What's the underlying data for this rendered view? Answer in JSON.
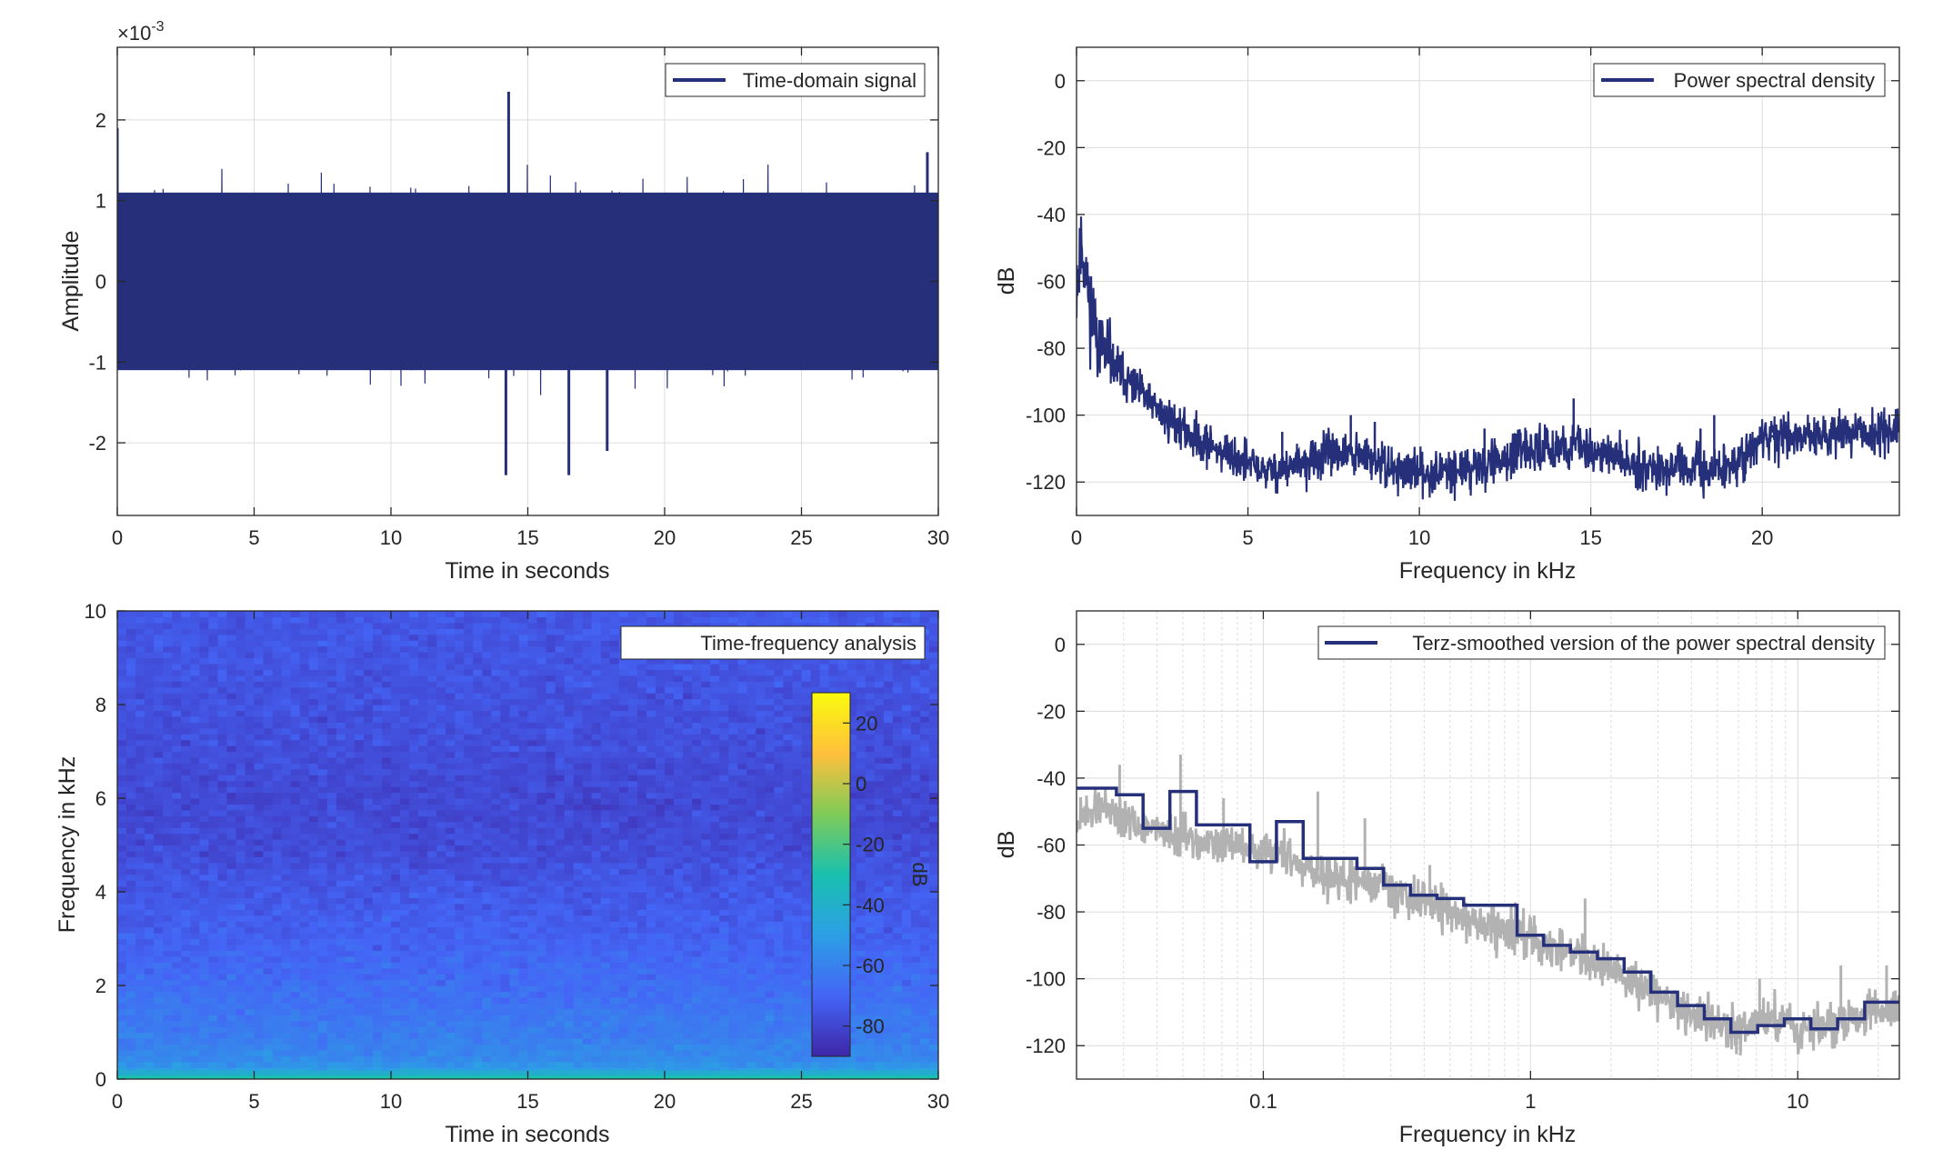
{
  "chart_data": [
    {
      "type": "line",
      "panel": "top-left",
      "legend": "Time-domain signal",
      "legend_position": "top-right",
      "xlabel": "Time in seconds",
      "ylabel": "Amplitude",
      "y_exponent": "×10",
      "y_exponent_power": "-3",
      "xlim": [
        0,
        30
      ],
      "ylim": [
        -2.9,
        2.9
      ],
      "xticks": [
        "0",
        "5",
        "10",
        "15",
        "20",
        "25",
        "30"
      ],
      "yticks": [
        "2",
        "1",
        "0",
        "-1",
        "-2"
      ],
      "grid": true,
      "color": "#26307a",
      "envelope_typical": [
        -1.1,
        1.1
      ],
      "extremes": [
        {
          "x": 0.0,
          "y": 1.9
        },
        {
          "x": 14.3,
          "y": 2.35
        },
        {
          "x": 14.2,
          "y": -2.4
        },
        {
          "x": 16.5,
          "y": -2.4
        },
        {
          "x": 17.9,
          "y": -2.1
        },
        {
          "x": 29.6,
          "y": 1.6
        }
      ]
    },
    {
      "type": "line",
      "panel": "top-right",
      "legend": "Power spectral density",
      "legend_position": "top-right",
      "xlabel": "Frequency in kHz",
      "ylabel": "dB",
      "xlim": [
        0,
        24
      ],
      "ylim": [
        -130,
        10
      ],
      "xticks": [
        "0",
        "5",
        "10",
        "15",
        "20"
      ],
      "yticks": [
        "0",
        "-20",
        "-40",
        "-60",
        "-80",
        "-100",
        "-120"
      ],
      "grid": true,
      "color": "#26307a",
      "x": [
        0,
        0.15,
        0.4,
        0.8,
        1.5,
        2.5,
        3.5,
        4.5,
        5.5,
        6.5,
        7.5,
        8.5,
        9.5,
        10.5,
        11.5,
        12.5,
        13.5,
        14.5,
        15.5,
        16.5,
        17.5,
        18.5,
        19.5,
        20.0,
        21.0,
        22.0,
        23.0,
        24.0
      ],
      "y": [
        -60,
        -48,
        -68,
        -82,
        -90,
        -100,
        -107,
        -112,
        -117,
        -115,
        -111,
        -113,
        -117,
        -117,
        -116,
        -113,
        -110,
        -109,
        -112,
        -115,
        -116,
        -117,
        -113,
        -107,
        -106,
        -106,
        -105,
        -105
      ],
      "spikes": [
        {
          "x": 6.0,
          "y": -105
        },
        {
          "x": 8.0,
          "y": -100
        },
        {
          "x": 8.7,
          "y": -102
        },
        {
          "x": 11.9,
          "y": -104
        },
        {
          "x": 14.5,
          "y": -95
        },
        {
          "x": 18.2,
          "y": -104
        },
        {
          "x": 18.6,
          "y": -100
        },
        {
          "x": 20.3,
          "y": -106
        }
      ]
    },
    {
      "type": "heatmap",
      "panel": "bottom-left",
      "legend": "Time-frequency analysis",
      "legend_position": "top-right",
      "xlabel": "Time in seconds",
      "ylabel": "Frequency in kHz",
      "xlim": [
        0,
        30
      ],
      "ylim": [
        0,
        10
      ],
      "xticks": [
        "0",
        "5",
        "10",
        "15",
        "20",
        "25",
        "30"
      ],
      "yticks": [
        "10",
        "8",
        "6",
        "4",
        "2",
        "0"
      ],
      "colorbar": {
        "label": "dB",
        "range": [
          -90,
          30
        ],
        "ticks": [
          "20",
          "0",
          "-20",
          "-40",
          "-60",
          "-80"
        ],
        "colormap": [
          "#3e26a8",
          "#4465f6",
          "#2c9fe5",
          "#19c0ae",
          "#80cb58",
          "#ffc03b",
          "#f9fb0e"
        ]
      },
      "profile_freq_khz": [
        0,
        0.2,
        0.4,
        1,
        2,
        3,
        4,
        5,
        6,
        7,
        8,
        9,
        10
      ],
      "profile_level_db": [
        -40,
        -50,
        -57,
        -62,
        -67,
        -71,
        -74,
        -78,
        -79,
        -77,
        -76,
        -75,
        -74
      ]
    },
    {
      "type": "line",
      "panel": "bottom-right",
      "legend": "Terz-smoothed version of the power spectral density",
      "legend_position": "top-right",
      "xlabel": "Frequency in kHz",
      "ylabel": "dB",
      "xscale": "log",
      "xlim": [
        0.02,
        24
      ],
      "ylim": [
        -130,
        10
      ],
      "xticks": [
        "0.1",
        "1",
        "10"
      ],
      "yticks": [
        "0",
        "-20",
        "-40",
        "-60",
        "-80",
        "-100",
        "-120"
      ],
      "grid": true,
      "series": [
        {
          "role": "smoothed",
          "color": "#26307a",
          "step_edges": [
            0.02,
            0.0282,
            0.0355,
            0.0447,
            0.0562,
            0.0708,
            0.0891,
            0.112,
            0.141,
            0.178,
            0.224,
            0.282,
            0.355,
            0.447,
            0.562,
            0.708,
            0.891,
            1.12,
            1.41,
            1.78,
            2.24,
            2.82,
            3.55,
            4.47,
            5.62,
            7.08,
            8.91,
            11.2,
            14.1,
            17.8,
            24
          ],
          "step_values": [
            -43,
            -45,
            -55,
            -44,
            -54,
            -54,
            -65,
            -53,
            -64,
            -64,
            -67,
            -72,
            -75,
            -76,
            -78,
            -78,
            -87,
            -90,
            -92,
            -94,
            -98,
            -104,
            -108,
            -112,
            -116,
            -114,
            -112,
            -115,
            -112,
            -107
          ]
        },
        {
          "role": "raw",
          "color": "#b2b2b2",
          "x": [
            0.02,
            0.025,
            0.03,
            0.04,
            0.05,
            0.07,
            0.1,
            0.15,
            0.2,
            0.3,
            0.5,
            0.7,
            1.0,
            1.5,
            2.0,
            3.0,
            4.0,
            5.0,
            6.0,
            7.0,
            8.0,
            10.0,
            12.0,
            15.0,
            18.0,
            22.0,
            24.0
          ],
          "y": [
            -53,
            -48,
            -52,
            -55,
            -58,
            -60,
            -62,
            -67,
            -70,
            -74,
            -80,
            -84,
            -88,
            -92,
            -97,
            -105,
            -110,
            -113,
            -116,
            -113,
            -110,
            -116,
            -113,
            -112,
            -111,
            -109,
            -110
          ],
          "spikes": [
            {
              "x": 0.029,
              "y": -36
            },
            {
              "x": 0.049,
              "y": -33
            },
            {
              "x": 0.071,
              "y": -46
            },
            {
              "x": 0.16,
              "y": -44
            },
            {
              "x": 0.24,
              "y": -52
            },
            {
              "x": 0.42,
              "y": -66
            },
            {
              "x": 1.6,
              "y": -76
            },
            {
              "x": 7.2,
              "y": -100
            },
            {
              "x": 14.5,
              "y": -96
            },
            {
              "x": 21.5,
              "y": -96
            }
          ]
        }
      ]
    }
  ]
}
